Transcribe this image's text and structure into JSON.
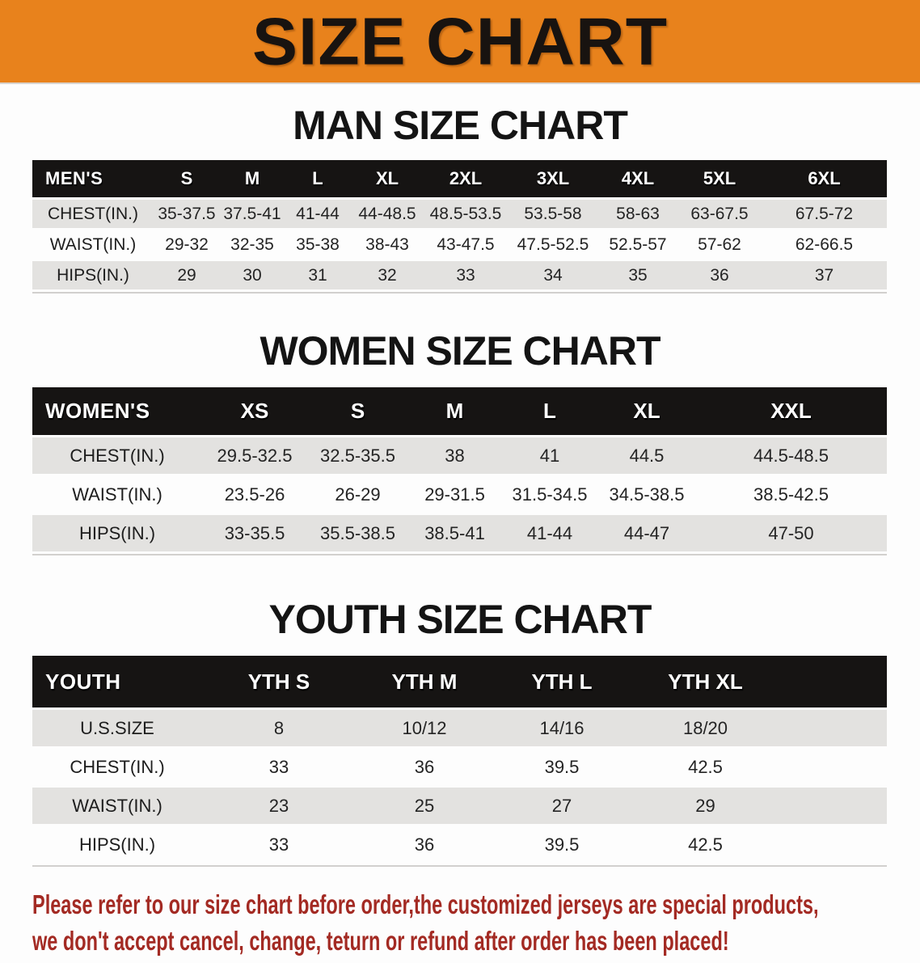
{
  "banner": {
    "title": "SIZE CHART"
  },
  "colors": {
    "banner_bg": "#e8821c",
    "header_bg": "#161413",
    "row_shade": "#e3e2e0",
    "footer_text": "#a32a23"
  },
  "sections": [
    {
      "heading": "MAN SIZE CHART",
      "table": {
        "corner": "MEN'S",
        "sizes": [
          "S",
          "M",
          "L",
          "XL",
          "2XL",
          "3XL",
          "4XL",
          "5XL",
          "6XL"
        ],
        "rows": [
          {
            "label": "CHEST(IN.)",
            "values": [
              "35-37.5",
              "37.5-41",
              "41-44",
              "44-48.5",
              "48.5-53.5",
              "53.5-58",
              "58-63",
              "63-67.5",
              "67.5-72"
            ]
          },
          {
            "label": "WAIST(IN.)",
            "values": [
              "29-32",
              "32-35",
              "35-38",
              "38-43",
              "43-47.5",
              "47.5-52.5",
              "52.5-57",
              "57-62",
              "62-66.5"
            ]
          },
          {
            "label": "HIPS(IN.)",
            "values": [
              "29",
              "30",
              "31",
              "32",
              "33",
              "34",
              "35",
              "36",
              "37"
            ]
          }
        ]
      }
    },
    {
      "heading": "WOMEN SIZE CHART",
      "table": {
        "corner": "WOMEN'S",
        "sizes": [
          "XS",
          "S",
          "M",
          "L",
          "XL",
          "XXL"
        ],
        "rows": [
          {
            "label": "CHEST(IN.)",
            "values": [
              "29.5-32.5",
              "32.5-35.5",
              "38",
              "41",
              "44.5",
              "44.5-48.5"
            ]
          },
          {
            "label": "WAIST(IN.)",
            "values": [
              "23.5-26",
              "26-29",
              "29-31.5",
              "31.5-34.5",
              "34.5-38.5",
              "38.5-42.5"
            ]
          },
          {
            "label": "HIPS(IN.)",
            "values": [
              "33-35.5",
              "35.5-38.5",
              "38.5-41",
              "41-44",
              "44-47",
              "47-50"
            ]
          }
        ]
      }
    },
    {
      "heading": "YOUTH SIZE CHART",
      "table": {
        "corner": "YOUTH",
        "sizes": [
          "YTH S",
          "YTH M",
          "YTH L",
          "YTH XL"
        ],
        "rows": [
          {
            "label": "U.S.SIZE",
            "values": [
              "8",
              "10/12",
              "14/16",
              "18/20"
            ]
          },
          {
            "label": "CHEST(IN.)",
            "values": [
              "33",
              "36",
              "39.5",
              "42.5"
            ]
          },
          {
            "label": "WAIST(IN.)",
            "values": [
              "23",
              "25",
              "27",
              "29"
            ]
          },
          {
            "label": "HIPS(IN.)",
            "values": [
              "33",
              "36",
              "39.5",
              "42.5"
            ]
          }
        ]
      }
    }
  ],
  "footer": {
    "line1": "Please refer to our size chart before order,the customized jerseys are special products,",
    "line2": "we don't accept cancel, change, teturn or refund after order has been placed!"
  }
}
